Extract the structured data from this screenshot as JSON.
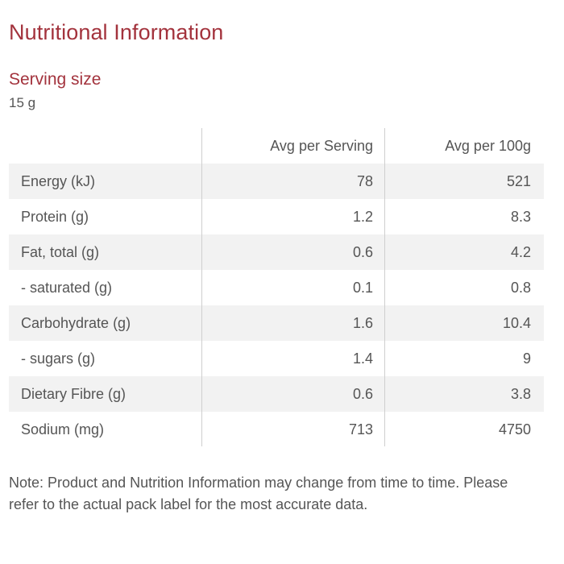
{
  "title": "Nutritional Information",
  "serving": {
    "label": "Serving size",
    "value": "15 g"
  },
  "table": {
    "headers": {
      "nutrient": "",
      "per_serving": "Avg per Serving",
      "per_100g": "Avg per 100g"
    },
    "rows": [
      {
        "nutrient": "Energy (kJ)",
        "per_serving": "78",
        "per_100g": "521"
      },
      {
        "nutrient": "Protein (g)",
        "per_serving": "1.2",
        "per_100g": "8.3"
      },
      {
        "nutrient": "Fat, total (g)",
        "per_serving": "0.6",
        "per_100g": "4.2"
      },
      {
        "nutrient": "- saturated (g)",
        "per_serving": "0.1",
        "per_100g": "0.8"
      },
      {
        "nutrient": "Carbohydrate (g)",
        "per_serving": "1.6",
        "per_100g": "10.4"
      },
      {
        "nutrient": "- sugars (g)",
        "per_serving": "1.4",
        "per_100g": "9"
      },
      {
        "nutrient": "Dietary Fibre (g)",
        "per_serving": "0.6",
        "per_100g": "3.8"
      },
      {
        "nutrient": "Sodium (mg)",
        "per_serving": "713",
        "per_100g": "4750"
      }
    ]
  },
  "note": "Note: Product and Nutrition Information may change from time to time. Please refer to the actual pack label for the most accurate data.",
  "colors": {
    "heading": "#a3333d",
    "text": "#555555",
    "row_shade": "#f2f2f2",
    "divider": "#cfcfcf"
  }
}
